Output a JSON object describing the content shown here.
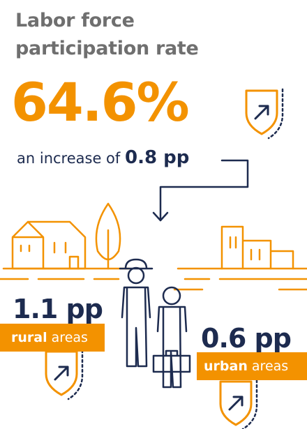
{
  "header": {
    "title": "Labor force participation rate"
  },
  "headline": {
    "value": "64.6%",
    "change_prefix": "an increase of",
    "change": "0.8 pp"
  },
  "rural": {
    "value": "1.1 pp",
    "label_bold": "rural",
    "label": "areas"
  },
  "urban": {
    "value": "0.6 pp",
    "label_bold": "urban",
    "label": "areas"
  }
}
